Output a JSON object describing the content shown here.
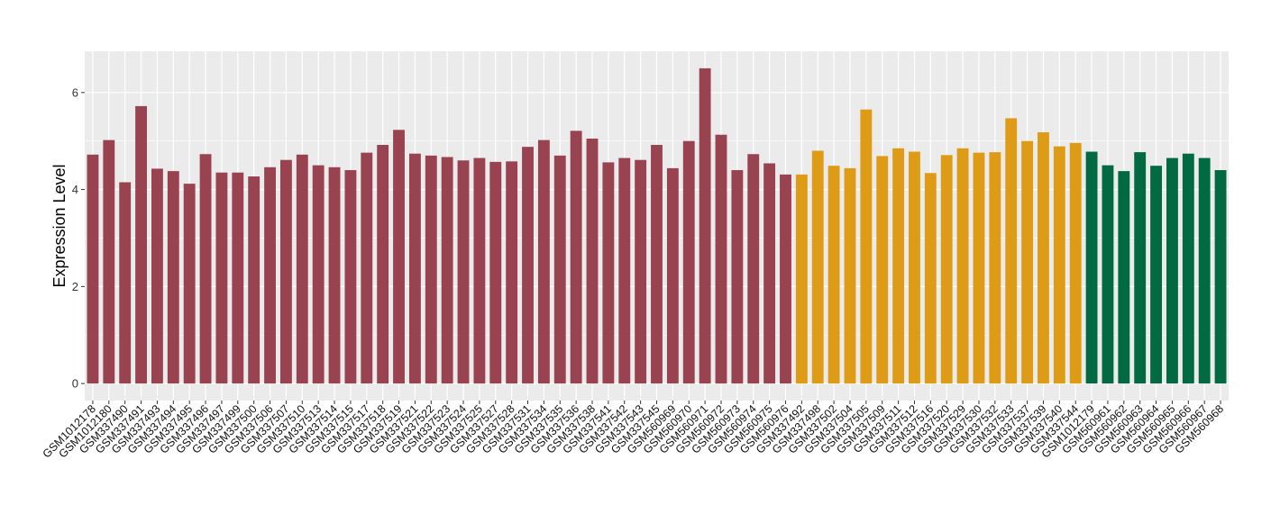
{
  "chart_data": {
    "type": "bar",
    "title": "",
    "xlabel": "",
    "ylabel": "Expression Level",
    "ylim": [
      -0.35,
      6.85
    ],
    "yticks": [
      0,
      2,
      4,
      6
    ],
    "grid": true,
    "legend": "none",
    "categories": [
      "GSM1012178",
      "GSM1012180",
      "GSM337490",
      "GSM337491",
      "GSM337493",
      "GSM337494",
      "GSM337495",
      "GSM337496",
      "GSM337497",
      "GSM337499",
      "GSM337500",
      "GSM337506",
      "GSM337507",
      "GSM337510",
      "GSM337513",
      "GSM337514",
      "GSM337515",
      "GSM337517",
      "GSM337518",
      "GSM337519",
      "GSM337521",
      "GSM337522",
      "GSM337523",
      "GSM337524",
      "GSM337525",
      "GSM337527",
      "GSM337528",
      "GSM337531",
      "GSM337534",
      "GSM337535",
      "GSM337536",
      "GSM337538",
      "GSM337541",
      "GSM337542",
      "GSM337543",
      "GSM337545",
      "GSM560969",
      "GSM560970",
      "GSM560971",
      "GSM560972",
      "GSM560973",
      "GSM560974",
      "GSM560975",
      "GSM560976",
      "GSM337492",
      "GSM337498",
      "GSM337502",
      "GSM337504",
      "GSM337505",
      "GSM337509",
      "GSM337511",
      "GSM337512",
      "GSM337516",
      "GSM337520",
      "GSM337529",
      "GSM337530",
      "GSM337532",
      "GSM337533",
      "GSM337537",
      "GSM337539",
      "GSM337540",
      "GSM337544",
      "GSM1012179",
      "GSM560961",
      "GSM560962",
      "GSM560963",
      "GSM560964",
      "GSM560965",
      "GSM560966",
      "GSM560967",
      "GSM560968"
    ],
    "values": [
      4.72,
      5.02,
      4.15,
      5.72,
      4.43,
      4.38,
      4.12,
      4.73,
      4.35,
      4.35,
      4.27,
      4.46,
      4.61,
      4.72,
      4.5,
      4.46,
      4.4,
      4.76,
      4.92,
      5.23,
      4.74,
      4.7,
      4.67,
      4.6,
      4.65,
      4.57,
      4.58,
      4.88,
      5.02,
      4.7,
      5.21,
      5.05,
      4.56,
      4.65,
      4.61,
      4.92,
      4.44,
      5.0,
      6.5,
      5.13,
      4.4,
      4.73,
      4.54,
      4.31,
      4.31,
      4.8,
      4.49,
      4.44,
      5.65,
      4.69,
      4.85,
      4.78,
      4.34,
      4.71,
      4.85,
      4.76,
      4.77,
      5.47,
      5.0,
      5.18,
      4.89,
      4.96,
      4.78,
      4.5,
      4.38,
      4.77,
      4.49,
      4.65,
      4.74,
      4.65,
      4.4
    ],
    "groups": [
      {
        "color": "#9A4350",
        "start": 0,
        "count": 44
      },
      {
        "color": "#DE9C16",
        "start": 44,
        "count": 18
      },
      {
        "color": "#026A43",
        "start": 62,
        "count": 9
      }
    ]
  },
  "colors": {
    "panel_background": "#EBEBEB",
    "gridline": "#FFFFFF"
  }
}
